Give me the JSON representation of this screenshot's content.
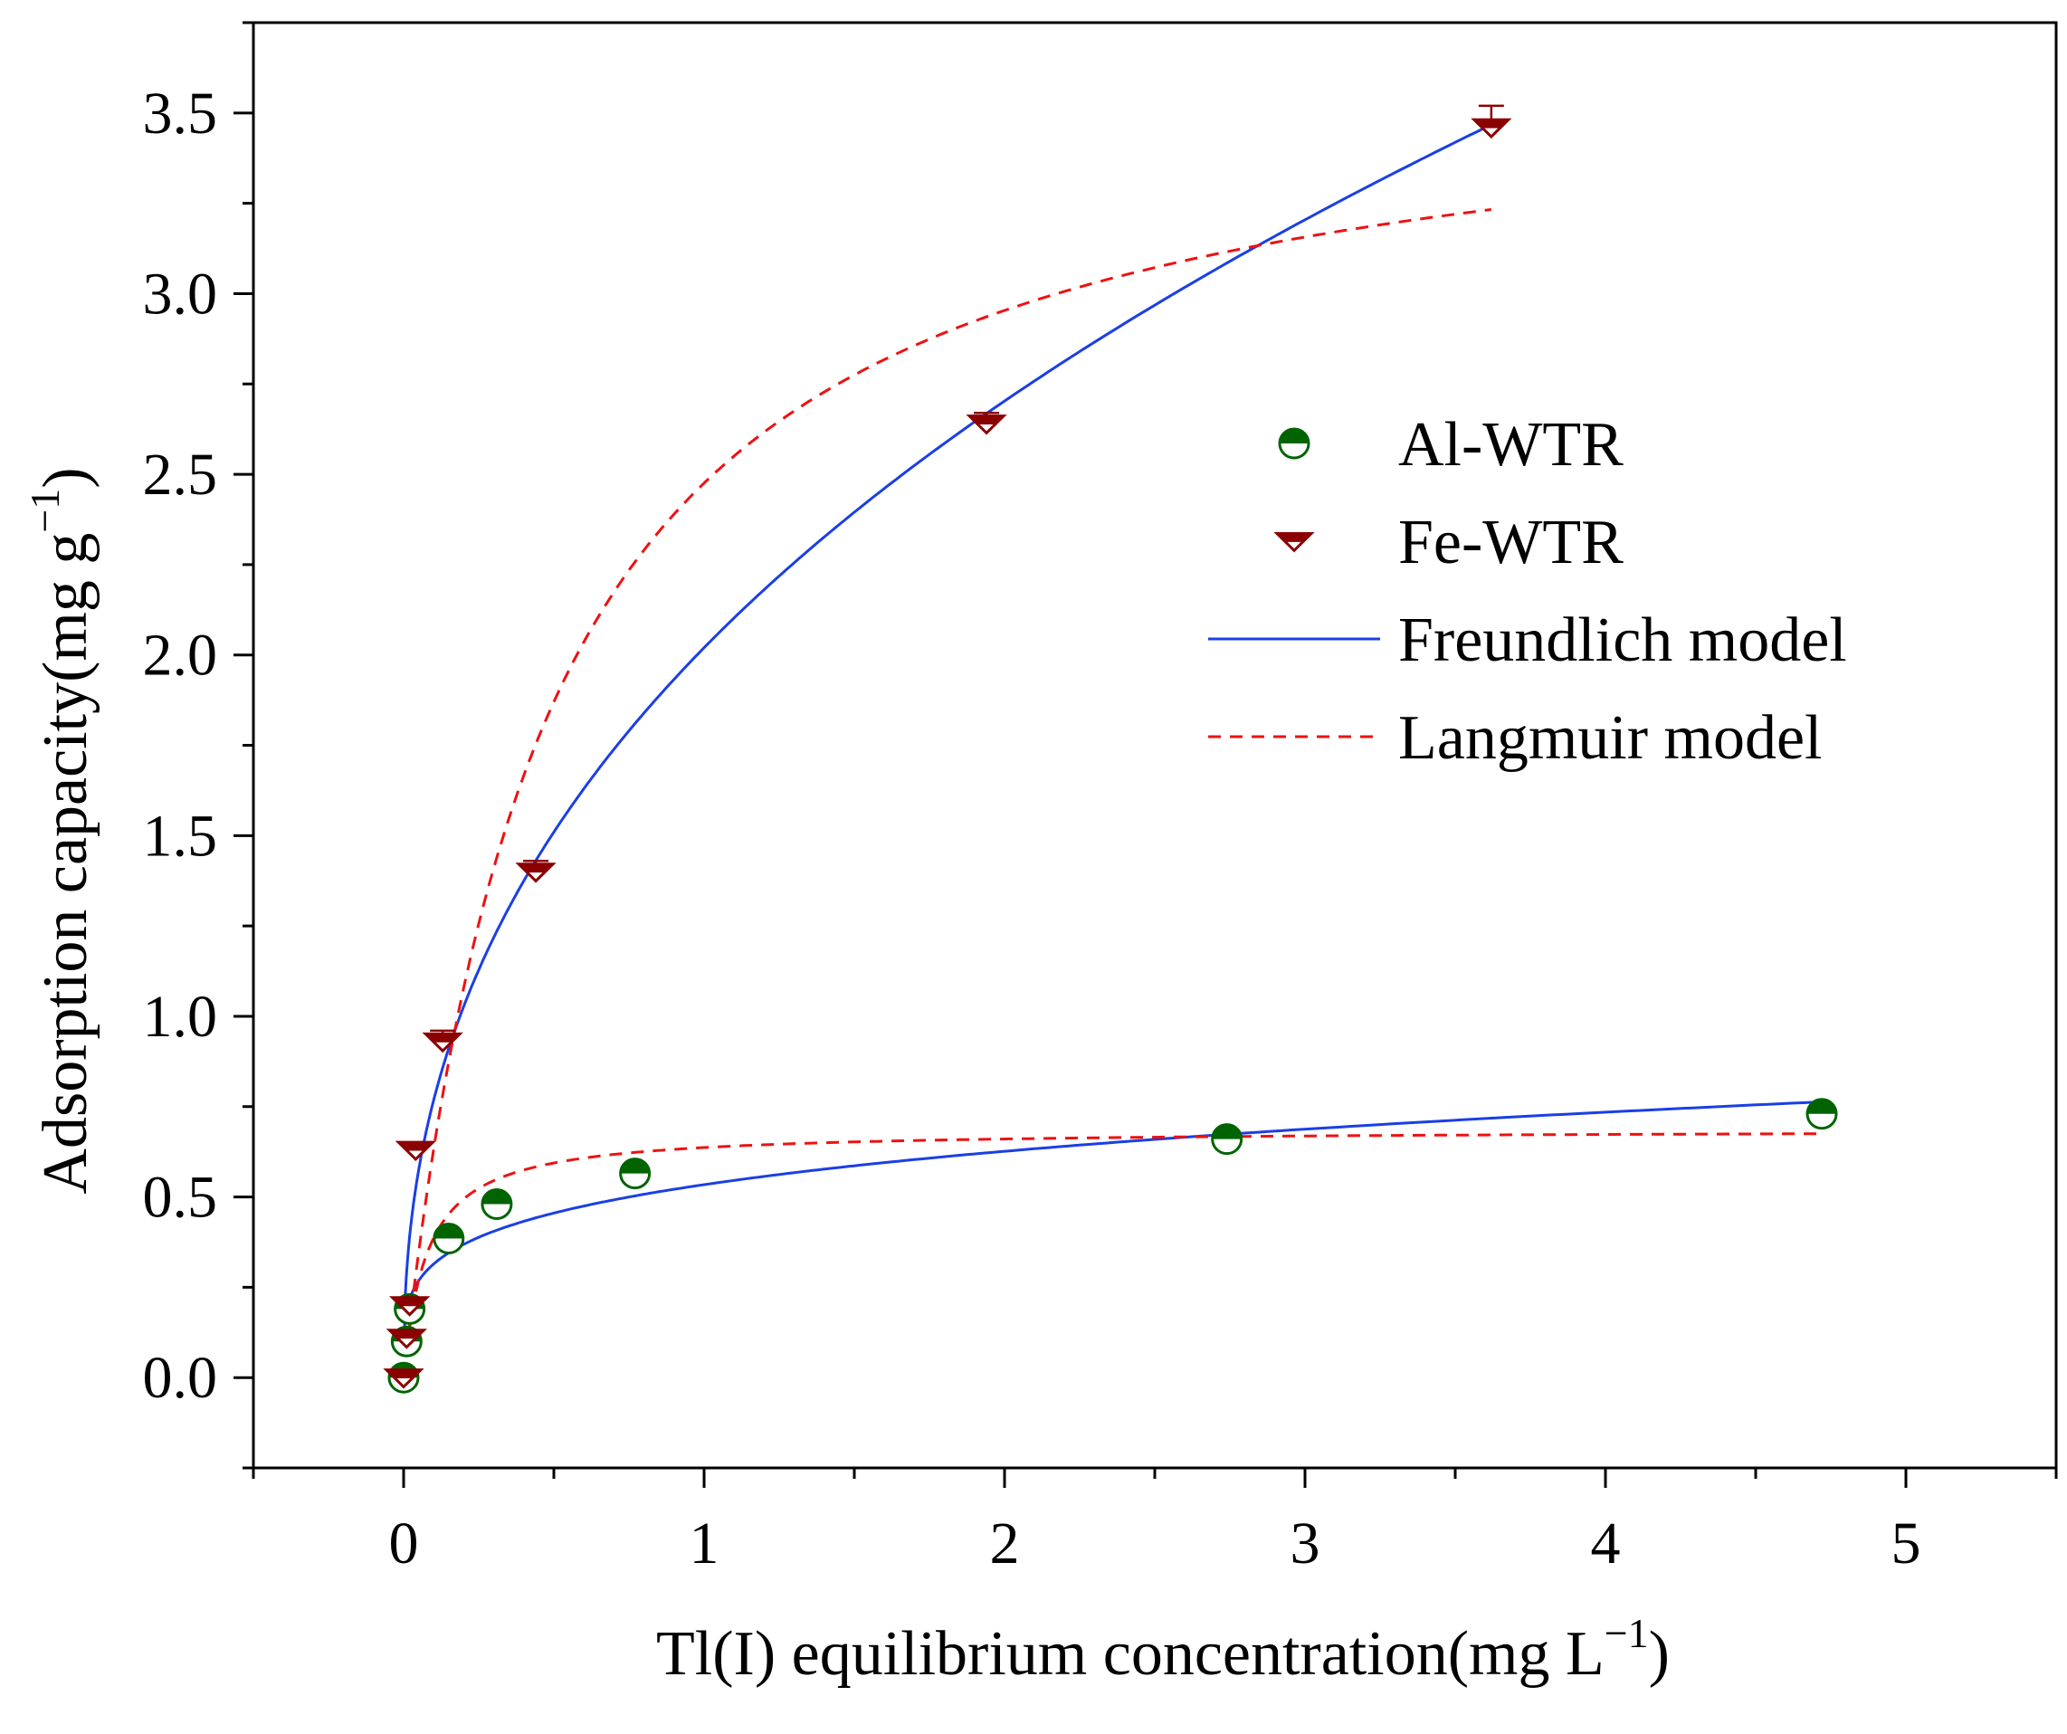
{
  "chart_data": {
    "type": "scatter",
    "xlabel": "Tl(I) equilibrium concentration(mg L",
    "xlabel_sup": "−1",
    "xlabel_close": ")",
    "ylabel": "Adsorption capacity(mg g",
    "ylabel_sup": "−1",
    "ylabel_close": ")",
    "xlim": [
      -0.5,
      5.5
    ],
    "ylim": [
      -0.25,
      3.75
    ],
    "x_ticks": [
      0,
      1,
      2,
      3,
      4,
      5
    ],
    "x_tick_labels": [
      "0",
      "1",
      "2",
      "3",
      "4",
      "5"
    ],
    "y_ticks": [
      0,
      0.5,
      1,
      1.5,
      2,
      2.5,
      3,
      3.5
    ],
    "y_tick_labels": [
      "0.0",
      "0.5",
      "1.0",
      "1.5",
      "2.0",
      "2.5",
      "3.0",
      "3.5"
    ],
    "legend_position": "right",
    "series": [
      {
        "name": "Al-WTR",
        "marker": "half-filled-circle",
        "color": "#006400",
        "x": [
          0,
          0.01,
          0.02,
          0.15,
          0.31,
          0.77,
          2.74,
          4.72
        ],
        "y": [
          0,
          0.1,
          0.19,
          0.385,
          0.48,
          0.565,
          0.66,
          0.73
        ],
        "err": [
          0,
          0,
          0,
          0,
          0,
          0,
          0,
          0.015
        ]
      },
      {
        "name": "Fe-WTR",
        "marker": "half-filled-triangle-down",
        "color": "#8B0000",
        "x": [
          0,
          0.01,
          0.02,
          0.04,
          0.13,
          0.44,
          1.94,
          3.62
        ],
        "y": [
          0,
          0.11,
          0.2,
          0.63,
          0.93,
          1.4,
          2.64,
          3.46
        ],
        "err": [
          0,
          0,
          0,
          0,
          0.03,
          0.03,
          0.03,
          0.06
        ]
      }
    ],
    "fits": [
      {
        "name": "Freundlich model",
        "style": "solid",
        "color": "#1a3fe6",
        "show_in_legend": true,
        "model": "freundlich",
        "K": 2.02,
        "n_inv": 0.42,
        "x_start": 0.002,
        "x_end": 3.62
      },
      {
        "name": "Freundlich model",
        "style": "solid",
        "color": "#1a3fe6",
        "show_in_legend": false,
        "model": "freundlich",
        "K": 0.534,
        "n_inv": 0.23,
        "x_start": 0.002,
        "x_end": 4.72
      },
      {
        "name": "Langmuir model",
        "style": "dashed",
        "color": "#ee1111",
        "show_in_legend": true,
        "model": "langmuir",
        "qmax": 3.66,
        "KL": 2.09,
        "x_start": 0.0,
        "x_end": 3.62
      },
      {
        "name": "Langmuir model",
        "style": "dashed",
        "color": "#ee1111",
        "show_in_legend": false,
        "model": "langmuir",
        "qmax": 0.686,
        "KL": 12.9,
        "x_start": 0.0,
        "x_end": 4.72
      }
    ],
    "legend": [
      {
        "label": "Al-WTR",
        "kind": "marker-circle"
      },
      {
        "label": "Fe-WTR",
        "kind": "marker-triangle"
      },
      {
        "label": "Freundlich model",
        "kind": "line-solid"
      },
      {
        "label": "Langmuir model",
        "kind": "line-dashed"
      }
    ]
  }
}
